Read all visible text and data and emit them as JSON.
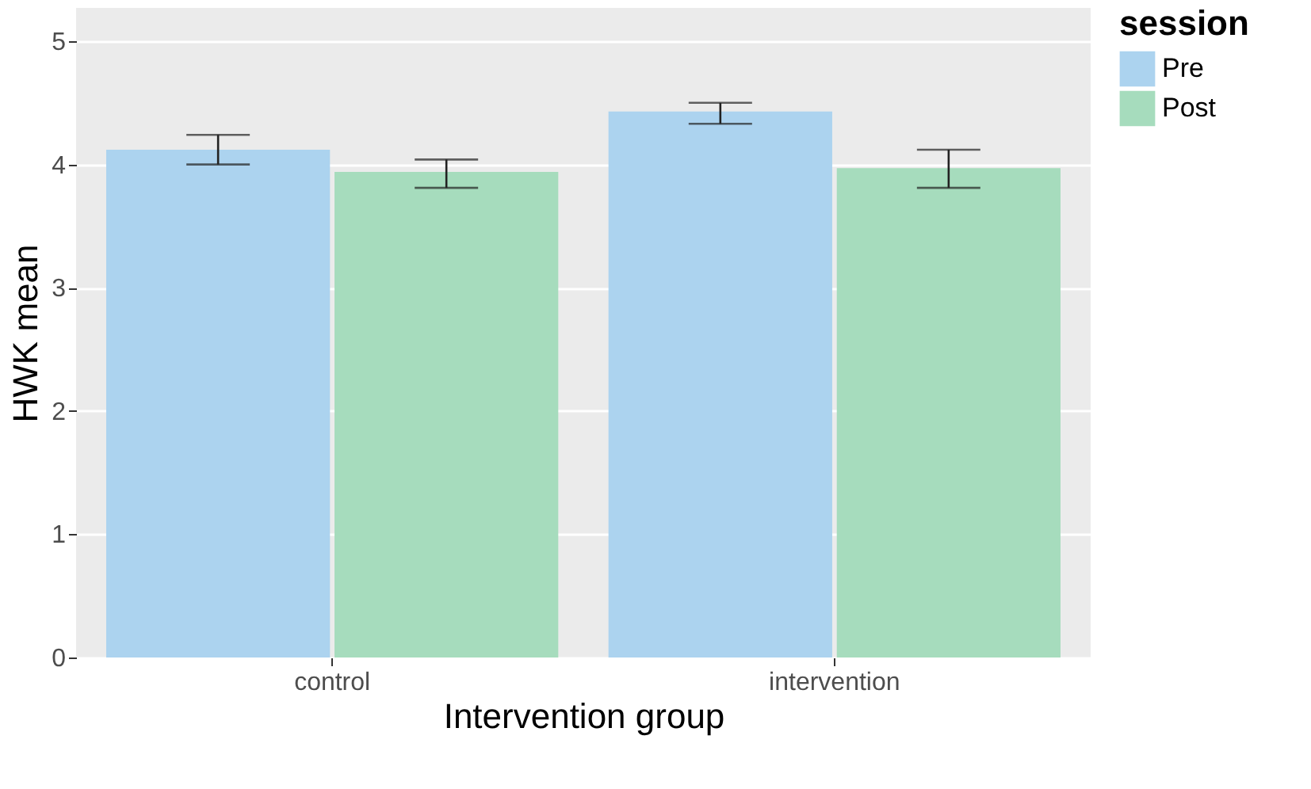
{
  "chart_data": {
    "type": "bar",
    "xlabel": "Intervention group",
    "ylabel": "HWK mean",
    "legend_title": "session",
    "categories": [
      "control",
      "intervention"
    ],
    "series": [
      {
        "name": "Pre",
        "color": "#acd3ef",
        "values": [
          4.12,
          4.43
        ],
        "errors": [
          [
            4.0,
            4.24
          ],
          [
            4.33,
            4.5
          ]
        ]
      },
      {
        "name": "Post",
        "color": "#a6dcbd",
        "values": [
          3.94,
          3.97
        ],
        "errors": [
          [
            3.81,
            4.04
          ],
          [
            3.81,
            4.12
          ]
        ]
      }
    ],
    "ylim": [
      0,
      5.27
    ],
    "yticks": [
      0,
      1,
      2,
      3,
      4,
      5
    ],
    "grid": "y",
    "legend": "right"
  }
}
